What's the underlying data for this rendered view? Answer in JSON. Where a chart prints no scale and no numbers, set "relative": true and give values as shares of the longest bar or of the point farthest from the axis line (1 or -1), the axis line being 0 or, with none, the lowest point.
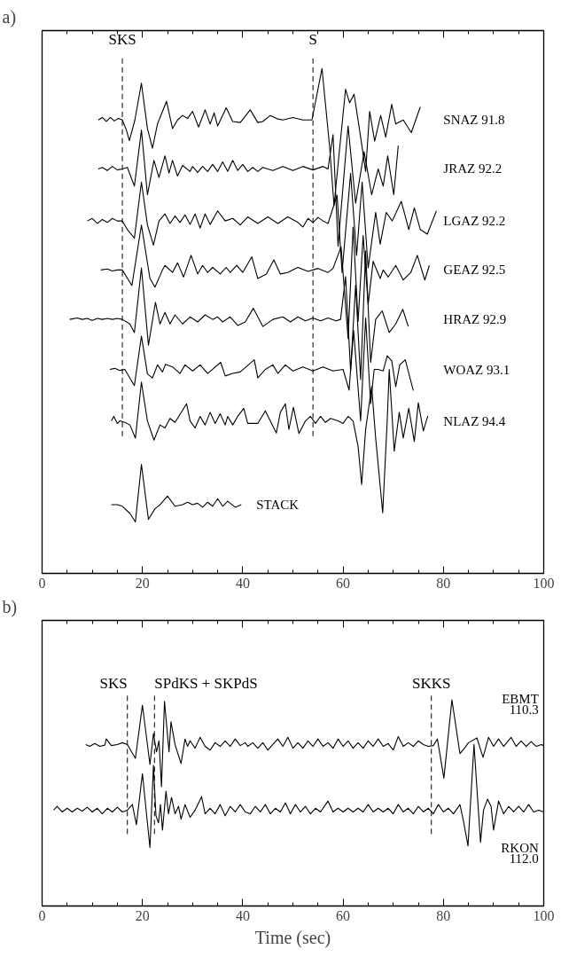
{
  "chart_data": [
    {
      "type": "line",
      "title": "a)",
      "relative": true,
      "tick_labels": "x",
      "xlim": [
        0,
        100
      ],
      "xticks": [
        0,
        {
          "value": 5,
          "label": null
        },
        {
          "value": 10,
          "label": null
        },
        {
          "value": 15,
          "label": null
        },
        20,
        {
          "value": 25,
          "label": null
        },
        {
          "value": 30,
          "label": null
        },
        {
          "value": 35,
          "label": null
        },
        40,
        {
          "value": 45,
          "label": null
        },
        {
          "value": 50,
          "label": null
        },
        {
          "value": 55,
          "label": null
        },
        60,
        {
          "value": 65,
          "label": null
        },
        {
          "value": 70,
          "label": null
        },
        {
          "value": 75,
          "label": null
        },
        80,
        {
          "value": 85,
          "label": null
        },
        {
          "value": 90,
          "label": null
        },
        {
          "value": 95,
          "label": null
        },
        100
      ],
      "ref_lines": [
        {
          "axis": "x",
          "value": 16,
          "label": "SKS",
          "line_style": "dashed"
        },
        {
          "axis": "x",
          "value": 54,
          "label": "S",
          "line_style": "dashed"
        }
      ],
      "series": [
        {
          "name": "SNAZ 91.8",
          "color": "#000000",
          "x": [
            11.2,
            12,
            12.8,
            13.6,
            14.4,
            15.2,
            16,
            16.8,
            17.4,
            18.5,
            19.8,
            21,
            22,
            23,
            24.8,
            26,
            27,
            28,
            29,
            30,
            31.2,
            32.5,
            33.5,
            34.3,
            35,
            36.7,
            38,
            39.5,
            41.5,
            43,
            44,
            45.5,
            47,
            48,
            50,
            52,
            53.8,
            55.8,
            57.3,
            58.2,
            59.2,
            60.5,
            61.3,
            62.2,
            63.5,
            64.5,
            65.3,
            66.3,
            67.5,
            68.5,
            69.7,
            70.5,
            72,
            73.6,
            75.4
          ],
          "values": [
            0.898,
            0.903,
            0.895,
            0.903,
            0.896,
            0.901,
            0.898,
            0.878,
            0.857,
            0.898,
            0.971,
            0.881,
            0.842,
            0.89,
            0.935,
            0.881,
            0.898,
            0.907,
            0.901,
            0.915,
            0.884,
            0.918,
            0.89,
            0.912,
            0.886,
            0.922,
            0.895,
            0.893,
            0.918,
            0.893,
            0.895,
            0.907,
            0.9,
            0.898,
            0.903,
            0.898,
            0.898,
            1.0,
            0.847,
            0.728,
            0.83,
            0.959,
            0.932,
            0.949,
            0.864,
            0.796,
            0.915,
            0.856,
            0.907,
            0.864,
            0.929,
            0.89,
            0.898,
            0.873,
            0.924
          ]
        },
        {
          "name": "JRAZ 92.2",
          "color": "#000000",
          "x": [
            11.2,
            12,
            13,
            14,
            15,
            16,
            17,
            18.4,
            19.8,
            21,
            22.3,
            23.3,
            24.5,
            25.3,
            26,
            27,
            28,
            29.5,
            30,
            31,
            32,
            33,
            34,
            35,
            36,
            37,
            38,
            39,
            40,
            41,
            42,
            43,
            44,
            46,
            48,
            50,
            52,
            54,
            56,
            57,
            58,
            59,
            61,
            62.5,
            64.2,
            65.7,
            67,
            68,
            68.9,
            70.1,
            71
          ],
          "values": [
            0.801,
            0.804,
            0.798,
            0.806,
            0.799,
            0.801,
            0.804,
            0.767,
            0.878,
            0.75,
            0.818,
            0.784,
            0.827,
            0.793,
            0.818,
            0.787,
            0.808,
            0.796,
            0.806,
            0.794,
            0.806,
            0.796,
            0.81,
            0.796,
            0.815,
            0.796,
            0.818,
            0.798,
            0.81,
            0.796,
            0.804,
            0.796,
            0.804,
            0.798,
            0.806,
            0.798,
            0.806,
            0.799,
            0.806,
            0.801,
            0.869,
            0.648,
            0.886,
            0.733,
            0.835,
            0.75,
            0.801,
            0.767,
            0.827,
            0.75,
            0.847
          ]
        },
        {
          "name": "LGAZ 92.2",
          "color": "#000000",
          "x": [
            9,
            10,
            11,
            12,
            13,
            14,
            15,
            16,
            17,
            18.4,
            19.8,
            21,
            22.2,
            23.3,
            24.5,
            25.5,
            26.5,
            27.5,
            28.5,
            29.5,
            30.5,
            31.5,
            32.5,
            33.5,
            35,
            36.5,
            38,
            39.5,
            41,
            43,
            45,
            47,
            49,
            51,
            52,
            53,
            54,
            55,
            56,
            57,
            58.8,
            59.8,
            61.5,
            62.7,
            63.8,
            65,
            66.5,
            67.4,
            68.6,
            69.8,
            71.6,
            73.1,
            74.2,
            75.4,
            76.8,
            78.6
          ],
          "values": [
            0.698,
            0.703,
            0.693,
            0.701,
            0.695,
            0.703,
            0.698,
            0.698,
            0.681,
            0.664,
            0.775,
            0.69,
            0.65,
            0.698,
            0.712,
            0.693,
            0.708,
            0.695,
            0.71,
            0.691,
            0.712,
            0.684,
            0.712,
            0.691,
            0.718,
            0.698,
            0.703,
            0.69,
            0.706,
            0.693,
            0.706,
            0.693,
            0.706,
            0.695,
            0.686,
            0.703,
            0.695,
            0.705,
            0.698,
            0.693,
            0.749,
            0.596,
            0.792,
            0.63,
            0.775,
            0.605,
            0.715,
            0.652,
            0.715,
            0.698,
            0.737,
            0.681,
            0.724,
            0.681,
            0.672,
            0.718
          ]
        },
        {
          "name": "GEAZ 92.5",
          "color": "#000000",
          "x": [
            11.7,
            13,
            14,
            15,
            16,
            17.9,
            19.8,
            21.5,
            22.5,
            24,
            24.5,
            26,
            27,
            28.2,
            29.7,
            31,
            32,
            33,
            34,
            35.5,
            36.7,
            37.5,
            38.8,
            40,
            41.8,
            43,
            44.7,
            46.2,
            47.5,
            49,
            50,
            51,
            53,
            55,
            57,
            58,
            59.6,
            61,
            62,
            63,
            64,
            65,
            66,
            67.4,
            68,
            69,
            70.5,
            72,
            73.5,
            74.8,
            76.3,
            77.2
          ],
          "values": [
            0.601,
            0.603,
            0.599,
            0.601,
            0.601,
            0.57,
            0.69,
            0.584,
            0.567,
            0.601,
            0.61,
            0.596,
            0.615,
            0.587,
            0.63,
            0.593,
            0.61,
            0.596,
            0.606,
            0.593,
            0.606,
            0.596,
            0.61,
            0.596,
            0.627,
            0.584,
            0.593,
            0.621,
            0.593,
            0.596,
            0.601,
            0.606,
            0.598,
            0.604,
            0.596,
            0.604,
            0.647,
            0.465,
            0.686,
            0.499,
            0.669,
            0.533,
            0.618,
            0.584,
            0.601,
            0.587,
            0.61,
            0.581,
            0.596,
            0.63,
            0.581,
            0.61
          ]
        },
        {
          "name": "HRAZ 92.9",
          "color": "#000000",
          "x": [
            5.5,
            7,
            8,
            9,
            10,
            11,
            12,
            13,
            14,
            15,
            16,
            17.5,
            18.4,
            19.8,
            21.2,
            22.6,
            23.5,
            24.5,
            25.5,
            26.5,
            28,
            29.5,
            31,
            32.5,
            34,
            35,
            36,
            37.5,
            39,
            40.5,
            42.1,
            44,
            46,
            48,
            49.5,
            51,
            52.5,
            54,
            55.5,
            57,
            58.6,
            59.5,
            60.5,
            61.5,
            62.5,
            63.5,
            64.5,
            65.5,
            66.5,
            67.8,
            69.2,
            70.5,
            71.9,
            73
          ],
          "values": [
            0.503,
            0.506,
            0.503,
            0.505,
            0.501,
            0.505,
            0.503,
            0.505,
            0.503,
            0.505,
            0.503,
            0.494,
            0.477,
            0.605,
            0.452,
            0.537,
            0.494,
            0.517,
            0.494,
            0.512,
            0.494,
            0.508,
            0.498,
            0.512,
            0.503,
            0.508,
            0.498,
            0.508,
            0.491,
            0.498,
            0.525,
            0.489,
            0.503,
            0.508,
            0.498,
            0.508,
            0.5,
            0.506,
            0.5,
            0.506,
            0.5,
            0.503,
            0.588,
            0.401,
            0.571,
            0.384,
            0.639,
            0.418,
            0.503,
            0.52,
            0.477,
            0.494,
            0.523,
            0.489
          ]
        },
        {
          "name": "WOAZ 93.1",
          "color": "#000000",
          "x": [
            13.5,
            14.5,
            15.5,
            16.5,
            17.5,
            18.4,
            19.8,
            21,
            22,
            23,
            24,
            24.6,
            26,
            27.5,
            28.5,
            30,
            31.5,
            33,
            35.6,
            36.5,
            38,
            39.5,
            42.3,
            43,
            44.5,
            46,
            47,
            48.5,
            50,
            52,
            54,
            56,
            58,
            60,
            61.2,
            62.1,
            63.5,
            64.5,
            65.5,
            66.2,
            67,
            68,
            68.8,
            69.7,
            70.5,
            71.3,
            72.4,
            74
          ],
          "values": [
            0.404,
            0.406,
            0.402,
            0.404,
            0.387,
            0.372,
            0.47,
            0.395,
            0.387,
            0.413,
            0.399,
            0.414,
            0.409,
            0.396,
            0.413,
            0.401,
            0.413,
            0.396,
            0.418,
            0.391,
            0.396,
            0.399,
            0.423,
            0.387,
            0.404,
            0.413,
            0.396,
            0.413,
            0.401,
            0.409,
            0.401,
            0.409,
            0.401,
            0.404,
            0.363,
            0.481,
            0.302,
            0.506,
            0.336,
            0.404,
            0.404,
            0.401,
            0.431,
            0.421,
            0.37,
            0.413,
            0.423,
            0.362
          ]
        },
        {
          "name": "NLAZ 94.4",
          "color": "#000000",
          "x": [
            13.8,
            14.3,
            15,
            15.5,
            16.5,
            17.5,
            18.6,
            19.8,
            21,
            22.3,
            23.5,
            24.5,
            25.5,
            26.5,
            28.8,
            29.5,
            30.5,
            31.5,
            32.5,
            33.5,
            34.5,
            35.5,
            36.5,
            37,
            38,
            39,
            40.2,
            41,
            42,
            43,
            44.5,
            46.7,
            47.5,
            48.5,
            49.2,
            50.1,
            51.2,
            52.5,
            53.5,
            54.5,
            55.5,
            56.5,
            57.5,
            59,
            60,
            61,
            62,
            63,
            63.7,
            64.5,
            65.7,
            66.5,
            67.9,
            68.8,
            69.2,
            70.2,
            71.2,
            72,
            73.1,
            74.2,
            75,
            76,
            76.9
          ],
          "values": [
            0.302,
            0.311,
            0.297,
            0.302,
            0.299,
            0.294,
            0.268,
            0.379,
            0.302,
            0.264,
            0.294,
            0.288,
            0.307,
            0.299,
            0.336,
            0.302,
            0.288,
            0.311,
            0.294,
            0.319,
            0.297,
            0.316,
            0.294,
            0.311,
            0.294,
            0.311,
            0.327,
            0.297,
            0.297,
            0.297,
            0.322,
            0.278,
            0.319,
            0.336,
            0.285,
            0.329,
            0.277,
            0.302,
            0.311,
            0.297,
            0.311,
            0.299,
            0.307,
            0.302,
            0.297,
            0.311,
            0.302,
            0.251,
            0.176,
            0.285,
            0.37,
            0.268,
            0.12,
            0.302,
            0.404,
            0.242,
            0.319,
            0.268,
            0.327,
            0.261,
            0.338,
            0.282,
            0.312
          ]
        },
        {
          "name": "STACK",
          "color": "#000000",
          "x": [
            13.8,
            15,
            16,
            17.5,
            18.6,
            19.8,
            21.2,
            22.5,
            23.5,
            25,
            26.5,
            28,
            29,
            30,
            31,
            32,
            33,
            34,
            35,
            36,
            37,
            38.5,
            39.7
          ],
          "values": [
            0.136,
            0.136,
            0.133,
            0.119,
            0.102,
            0.216,
            0.107,
            0.128,
            0.136,
            0.153,
            0.133,
            0.136,
            0.141,
            0.136,
            0.139,
            0.131,
            0.141,
            0.133,
            0.148,
            0.133,
            0.143,
            0.131,
            0.136
          ]
        }
      ]
    },
    {
      "type": "line",
      "title": "b)",
      "xlabel": "Time (sec)",
      "relative": true,
      "tick_labels": "x",
      "xlim": [
        0,
        100
      ],
      "xticks": [
        0,
        {
          "value": 5,
          "label": null
        },
        {
          "value": 10,
          "label": null
        },
        {
          "value": 15,
          "label": null
        },
        20,
        {
          "value": 25,
          "label": null
        },
        {
          "value": 30,
          "label": null
        },
        {
          "value": 35,
          "label": null
        },
        40,
        {
          "value": 45,
          "label": null
        },
        {
          "value": 50,
          "label": null
        },
        {
          "value": 55,
          "label": null
        },
        60,
        {
          "value": 65,
          "label": null
        },
        {
          "value": 70,
          "label": null
        },
        {
          "value": 75,
          "label": null
        },
        80,
        {
          "value": 85,
          "label": null
        },
        {
          "value": 90,
          "label": null
        },
        {
          "value": 95,
          "label": null
        },
        100
      ],
      "ref_lines": [
        {
          "axis": "x",
          "value": 17,
          "label": "SKS",
          "line_style": "dashed"
        },
        {
          "axis": "x",
          "value": 22.4,
          "label": "SPdKS + SKPdS",
          "line_style": "dashed"
        },
        {
          "axis": "x",
          "value": 77.6,
          "label": "SKKS",
          "line_style": "dashed"
        }
      ],
      "series": [
        {
          "name": "EBMT\n110.3",
          "color": "#000000",
          "x": [
            8.7,
            9.5,
            10.5,
            11.5,
            12.5,
            12.8,
            13.8,
            15,
            16,
            17,
            18.6,
            20,
            21.5,
            22.2,
            22.8,
            23.3,
            23.8,
            24.4,
            25.3,
            25.7,
            26.5,
            27.7,
            28.5,
            29,
            29.5,
            30.5,
            31.5,
            32.5,
            33.5,
            34.5,
            35.5,
            36.5,
            37.5,
            38.5,
            39.5,
            40.5,
            41,
            42,
            43,
            44,
            45,
            46,
            47,
            48,
            49,
            50,
            51,
            52,
            53,
            54,
            55,
            56,
            57,
            58,
            59,
            60,
            61,
            62,
            63,
            64,
            65,
            66,
            67,
            68,
            69,
            70,
            71,
            72,
            73,
            74,
            75,
            76,
            77,
            78,
            78.8,
            80.1,
            81.7,
            83.3,
            84.2,
            85,
            86.7,
            87.4,
            87.9,
            89,
            90,
            91,
            92,
            93.5,
            94.5,
            95.5,
            96.5,
            97.5,
            98.5,
            99.5,
            100
          ],
          "values": [
            0.783,
            0.774,
            0.788,
            0.774,
            0.78,
            0.81,
            0.778,
            0.783,
            0.792,
            0.783,
            0.716,
            0.974,
            0.686,
            0.836,
            0.748,
            0.801,
            0.579,
            0.992,
            0.748,
            0.893,
            0.783,
            0.691,
            0.81,
            0.774,
            0.801,
            0.765,
            0.818,
            0.774,
            0.756,
            0.792,
            0.774,
            0.801,
            0.774,
            0.81,
            0.778,
            0.792,
            0.774,
            0.792,
            0.765,
            0.792,
            0.756,
            0.783,
            0.81,
            0.774,
            0.818,
            0.765,
            0.792,
            0.765,
            0.801,
            0.774,
            0.81,
            0.774,
            0.792,
            0.765,
            0.81,
            0.774,
            0.801,
            0.765,
            0.792,
            0.765,
            0.801,
            0.774,
            0.81,
            0.774,
            0.788,
            0.756,
            0.822,
            0.774,
            0.792,
            0.774,
            0.801,
            0.783,
            0.774,
            0.778,
            0.81,
            0.62,
            1.0,
            0.739,
            0.765,
            0.792,
            0.815,
            0.76,
            0.721,
            0.818,
            0.774,
            0.81,
            0.774,
            0.818,
            0.774,
            0.801,
            0.774,
            0.797,
            0.774,
            0.783,
            0.778
          ]
        },
        {
          "name": "RKON\n112.0",
          "color": "#000000",
          "x": [
            2.3,
            3,
            4,
            5,
            6,
            7,
            8,
            9,
            10,
            11,
            12,
            13,
            14,
            15,
            16,
            17,
            18,
            18.8,
            20,
            21.5,
            22.2,
            22.7,
            23.2,
            23.6,
            24,
            24.7,
            25.2,
            25.8,
            26.5,
            27.2,
            27.7,
            28.5,
            29.5,
            30.5,
            31.8,
            32.5,
            33.5,
            34.5,
            35.5,
            36.5,
            37.5,
            38.5,
            39.5,
            40.5,
            41.5,
            42.5,
            43.5,
            44.5,
            45.5,
            46.5,
            47.5,
            48.5,
            49.5,
            50.5,
            51.5,
            52.5,
            53.5,
            54.5,
            55.5,
            57,
            58,
            59,
            60,
            61,
            62,
            63,
            64,
            65,
            66,
            67,
            68,
            69,
            70,
            71,
            72,
            73,
            74,
            75,
            76,
            77,
            78,
            79,
            80,
            81,
            82,
            83.3,
            84,
            84.9,
            86.1,
            87.4,
            88,
            88.8,
            89.5,
            90,
            91,
            92,
            93,
            94,
            95,
            96,
            97,
            98,
            99,
            100
          ],
          "values": [
            0.465,
            0.483,
            0.456,
            0.474,
            0.456,
            0.474,
            0.46,
            0.479,
            0.456,
            0.474,
            0.447,
            0.474,
            0.456,
            0.479,
            0.456,
            0.465,
            0.492,
            0.394,
            0.642,
            0.283,
            0.683,
            0.438,
            0.403,
            0.492,
            0.368,
            0.557,
            0.447,
            0.527,
            0.447,
            0.483,
            0.421,
            0.492,
            0.43,
            0.465,
            0.53,
            0.447,
            0.474,
            0.447,
            0.492,
            0.438,
            0.483,
            0.456,
            0.492,
            0.456,
            0.447,
            0.483,
            0.456,
            0.492,
            0.447,
            0.474,
            0.456,
            0.5,
            0.447,
            0.492,
            0.456,
            0.483,
            0.447,
            0.474,
            0.456,
            0.509,
            0.456,
            0.474,
            0.456,
            0.474,
            0.456,
            0.474,
            0.456,
            0.492,
            0.456,
            0.474,
            0.456,
            0.474,
            0.447,
            0.492,
            0.456,
            0.474,
            0.447,
            0.483,
            0.456,
            0.474,
            0.447,
            0.492,
            0.456,
            0.474,
            0.447,
            0.492,
            0.412,
            0.292,
            0.784,
            0.309,
            0.465,
            0.518,
            0.483,
            0.368,
            0.509,
            0.447,
            0.483,
            0.456,
            0.483,
            0.456,
            0.492,
            0.456,
            0.465,
            0.456
          ]
        }
      ]
    }
  ]
}
